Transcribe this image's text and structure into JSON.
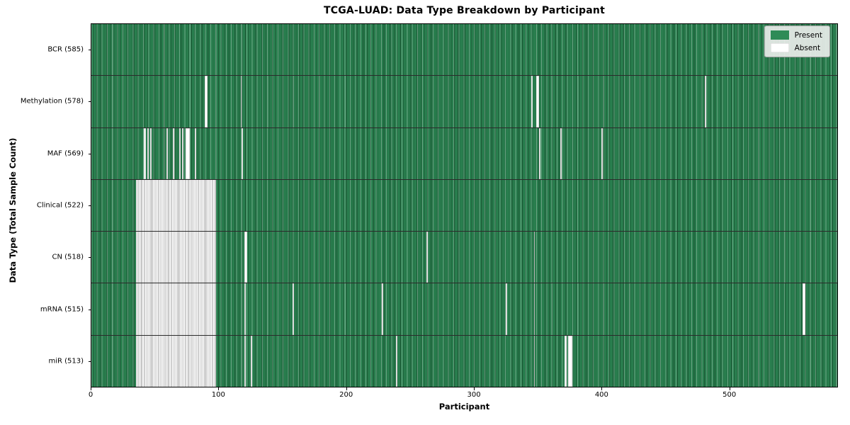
{
  "title": "TCGA-LUAD: Data Type Breakdown by Participant",
  "x_axis": {
    "label": "Participant"
  },
  "y_axis": {
    "label": "Data Type (Total Sample Count)"
  },
  "legend": {
    "items": [
      {
        "label": "Present",
        "color": "#2e8b57"
      },
      {
        "label": "Absent",
        "color": "#ffffff"
      }
    ]
  },
  "colors": {
    "present": "#2e8b57",
    "present_edge": "#174e2d",
    "absent": "#ffffff",
    "row_divider": "#2b2b2b",
    "legend_bg": "#e9ece9"
  },
  "chart_data": {
    "type": "heatmap",
    "title": "TCGA-LUAD: Data Type Breakdown by Participant",
    "xlabel": "Participant",
    "ylabel": "Data Type (Total Sample Count)",
    "legend": [
      "Present",
      "Absent"
    ],
    "legend_position": "upper right",
    "n_participants": 585,
    "x_range": [
      0,
      585
    ],
    "x_ticks": [
      0,
      100,
      200,
      300,
      400,
      500
    ],
    "rows": [
      {
        "name": "bcr",
        "label": "BCR (585)",
        "present_count": 585,
        "absent_ranges": []
      },
      {
        "name": "methylation",
        "label": "Methylation (578)",
        "present_count": 578,
        "absent_ranges": [
          [
            89,
            90
          ],
          [
            117,
            117
          ],
          [
            345,
            345
          ],
          [
            349,
            350
          ],
          [
            481,
            481
          ]
        ]
      },
      {
        "name": "maf",
        "label": "MAF (569)",
        "present_count": 569,
        "absent_ranges": [
          [
            41,
            42
          ],
          [
            44,
            44
          ],
          [
            46,
            46
          ],
          [
            59,
            59
          ],
          [
            64,
            64
          ],
          [
            69,
            69
          ],
          [
            71,
            71
          ],
          [
            74,
            76
          ],
          [
            81,
            81
          ],
          [
            118,
            118
          ],
          [
            351,
            351
          ],
          [
            368,
            368
          ],
          [
            400,
            400
          ]
        ]
      },
      {
        "name": "clinical",
        "label": "Clinical (522)",
        "present_count": 522,
        "absent_ranges": [
          [
            35,
            97
          ]
        ]
      },
      {
        "name": "cn",
        "label": "CN (518)",
        "present_count": 518,
        "absent_ranges": [
          [
            35,
            97
          ],
          [
            120,
            121
          ],
          [
            263,
            263
          ],
          [
            347,
            347
          ]
        ]
      },
      {
        "name": "mrna",
        "label": "mRNA (515)",
        "present_count": 515,
        "absent_ranges": [
          [
            35,
            97
          ],
          [
            120,
            120
          ],
          [
            158,
            158
          ],
          [
            228,
            228
          ],
          [
            325,
            325
          ],
          [
            347,
            347
          ],
          [
            558,
            559
          ]
        ]
      },
      {
        "name": "mir",
        "label": "miR (513)",
        "present_count": 513,
        "absent_ranges": [
          [
            35,
            97
          ],
          [
            120,
            120
          ],
          [
            125,
            125
          ],
          [
            239,
            239
          ],
          [
            347,
            347
          ],
          [
            371,
            372
          ],
          [
            374,
            376
          ]
        ]
      }
    ]
  }
}
